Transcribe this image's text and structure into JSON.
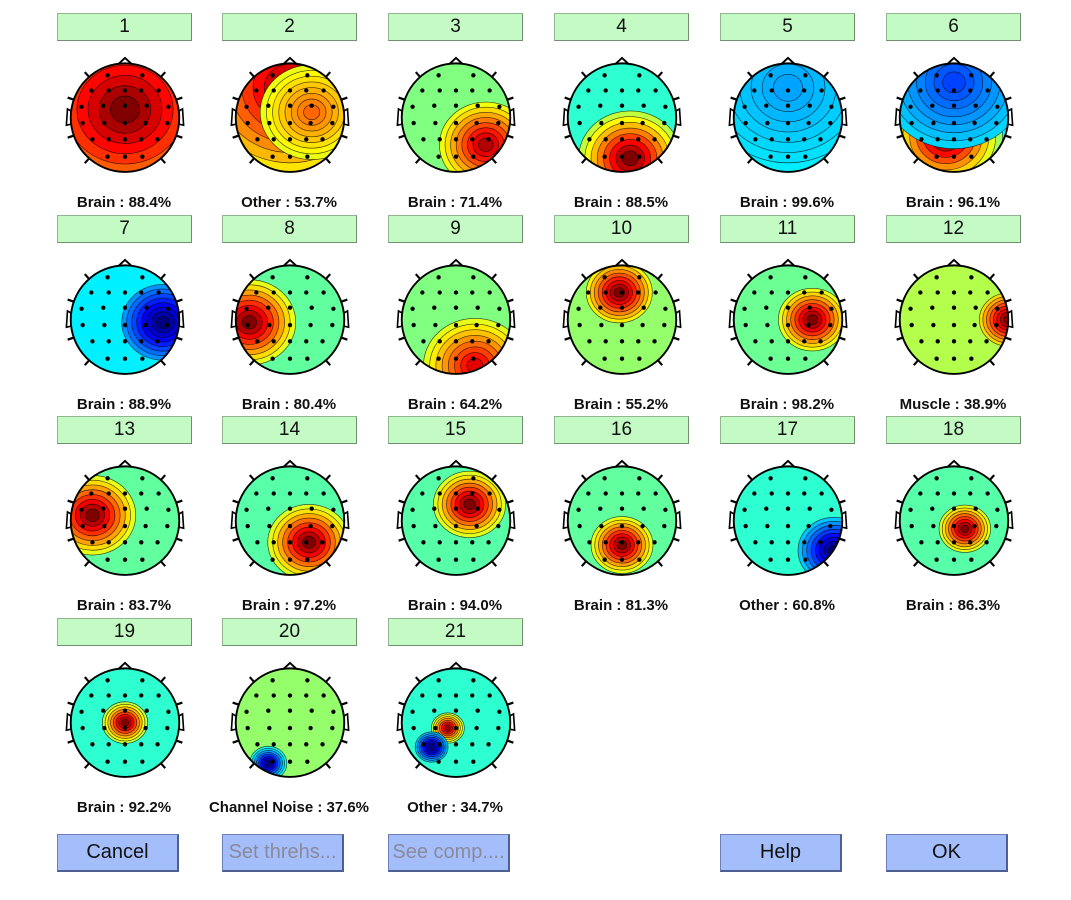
{
  "components": [
    {
      "number": "1",
      "label": "Brain : 88.4%",
      "hot": [
        [
          0,
          -0.15,
          0.9,
          0.75
        ]
      ],
      "cold": [],
      "base": 0.6
    },
    {
      "number": "2",
      "label": "Other : 53.7%",
      "hot": [
        [
          0,
          -0.55,
          0.9,
          0.45
        ],
        [
          0.4,
          -0.1,
          0.5,
          0.25
        ]
      ],
      "cold": [],
      "base": 0.55
    },
    {
      "number": "3",
      "label": "Brain : 71.4%",
      "hot": [
        [
          0.55,
          0.5,
          0.45,
          0.45
        ]
      ],
      "cold": [],
      "base": 0.5
    },
    {
      "number": "4",
      "label": "Brain : 88.5%",
      "hot": [
        [
          0.15,
          0.75,
          0.5,
          0.55
        ]
      ],
      "cold": [],
      "base": 0.42
    },
    {
      "number": "5",
      "label": "Brain : 99.6%",
      "hot": [
        [
          0.45,
          0.65,
          0.38,
          0.55
        ]
      ],
      "cold": [
        [
          0,
          -0.55,
          0.9,
          0.1
        ]
      ],
      "base": 0.38
    },
    {
      "number": "6",
      "label": "Brain : 96.1%",
      "hot": [
        [
          -0.15,
          0.35,
          0.55,
          0.65
        ]
      ],
      "cold": [
        [
          0,
          -0.65,
          0.7,
          0.2
        ]
      ],
      "base": 0.38
    },
    {
      "number": "7",
      "label": "Brain : 88.9%",
      "hot": [],
      "cold": [
        [
          0.7,
          0.05,
          0.4,
          0.42
        ]
      ],
      "base": 0.36
    },
    {
      "number": "8",
      "label": "Brain : 80.4%",
      "hot": [
        [
          -0.75,
          0.05,
          0.45,
          0.5
        ]
      ],
      "cold": [],
      "base": 0.47
    },
    {
      "number": "9",
      "label": "Brain : 64.2%",
      "hot": [
        [
          0.35,
          0.85,
          0.5,
          0.4
        ]
      ],
      "cold": [],
      "base": 0.5
    },
    {
      "number": "10",
      "label": "Brain : 55.2%",
      "hot": [
        [
          -0.05,
          -0.5,
          0.32,
          0.6
        ]
      ],
      "cold": [],
      "base": 0.52
    },
    {
      "number": "11",
      "label": "Brain : 98.2%",
      "hot": [
        [
          0.45,
          0.0,
          0.33,
          0.55
        ]
      ],
      "cold": [],
      "base": 0.48
    },
    {
      "number": "12",
      "label": "Muscle : 38.9%",
      "hot": [
        [
          1.0,
          0.0,
          0.28,
          0.5
        ]
      ],
      "cold": [],
      "base": 0.55
    },
    {
      "number": "13",
      "label": "Brain : 83.7%",
      "hot": [
        [
          -0.6,
          -0.1,
          0.42,
          0.55
        ]
      ],
      "cold": [],
      "base": 0.47
    },
    {
      "number": "14",
      "label": "Brain : 97.2%",
      "hot": [
        [
          0.35,
          0.4,
          0.4,
          0.55
        ]
      ],
      "cold": [],
      "base": 0.46
    },
    {
      "number": "15",
      "label": "Brain : 94.0%",
      "hot": [
        [
          0.25,
          -0.3,
          0.35,
          0.55
        ]
      ],
      "cold": [],
      "base": 0.46
    },
    {
      "number": "16",
      "label": "Brain : 81.3%",
      "hot": [
        [
          0.0,
          0.45,
          0.3,
          0.55
        ]
      ],
      "cold": [],
      "base": 0.47
    },
    {
      "number": "17",
      "label": "Other : 60.8%",
      "hot": [],
      "cold": [
        [
          0.85,
          0.55,
          0.35,
          0.4
        ]
      ],
      "base": 0.42
    },
    {
      "number": "18",
      "label": "Brain : 86.3%",
      "hot": [
        [
          0.2,
          0.15,
          0.25,
          0.55
        ]
      ],
      "cold": [],
      "base": 0.46
    },
    {
      "number": "19",
      "label": "Brain : 92.2%",
      "hot": [
        [
          0.0,
          0.0,
          0.22,
          0.52
        ]
      ],
      "cold": [],
      "base": 0.42
    },
    {
      "number": "20",
      "label": "Channel Noise : 37.6%",
      "hot": [],
      "cold": [
        [
          -0.4,
          0.75,
          0.18,
          0.45
        ]
      ],
      "base": 0.52
    },
    {
      "number": "21",
      "label": "Other : 34.7%",
      "hot": [
        [
          -0.15,
          0.1,
          0.16,
          0.48
        ]
      ],
      "cold": [
        [
          -0.45,
          0.45,
          0.16,
          0.45
        ]
      ],
      "base": 0.42
    }
  ],
  "buttons": {
    "cancel": "Cancel",
    "set_thresholds": "Set threhs...",
    "see_components": "See comp....",
    "help": "Help",
    "ok": "OK"
  },
  "colors": {
    "component_button_bg": "#c4fac4",
    "action_button_bg": "#a4bdfb",
    "disabled_text": "#8a8a9a"
  }
}
